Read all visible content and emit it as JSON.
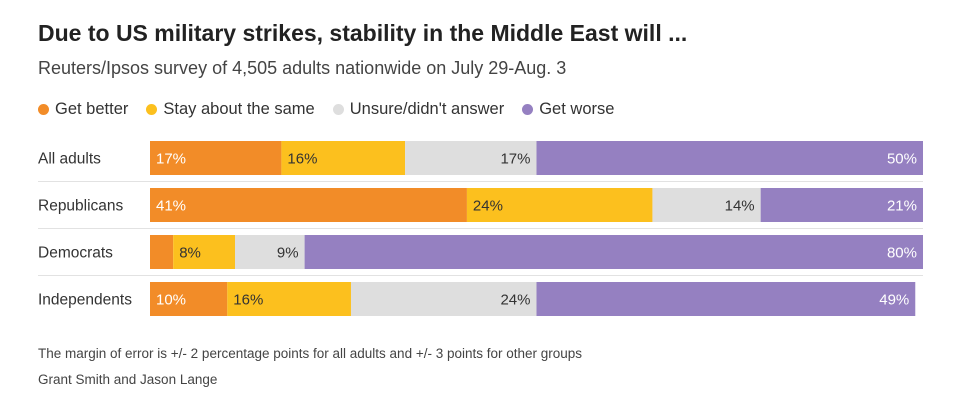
{
  "title": "Due to US military strikes, stability in the Middle East will ...",
  "subtitle": "Reuters/Ipsos survey of 4,505 adults nationwide on July 29-Aug. 3",
  "footer": {
    "note": "The margin of error is +/- 2 percentage points for all adults and +/- 3 points for other groups",
    "credit": "Grant Smith and Jason Lange"
  },
  "chart_data": {
    "type": "bar",
    "orientation": "horizontal",
    "stacked": true,
    "categories": [
      "All adults",
      "Republicans",
      "Democrats",
      "Independents"
    ],
    "series": [
      {
        "name": "Get better",
        "color": "#f28c28",
        "values": [
          17,
          41,
          3,
          10
        ],
        "labels": [
          "17%",
          "41%",
          "",
          "10%"
        ]
      },
      {
        "name": "Stay about the same",
        "color": "#fcc01e",
        "values": [
          16,
          24,
          8,
          16
        ],
        "labels": [
          "16%",
          "24%",
          "8%",
          "16%"
        ]
      },
      {
        "name": "Unsure/didn't answer",
        "color": "#dedede",
        "values": [
          17,
          14,
          9,
          24
        ],
        "labels": [
          "17%",
          "14%",
          "9%",
          "24%"
        ]
      },
      {
        "name": "Get worse",
        "color": "#9580c1",
        "values": [
          50,
          21,
          80,
          49
        ],
        "labels": [
          "50%",
          "21%",
          "80%",
          "49%"
        ]
      }
    ],
    "xlim": [
      0,
      100
    ],
    "legend": "top"
  }
}
